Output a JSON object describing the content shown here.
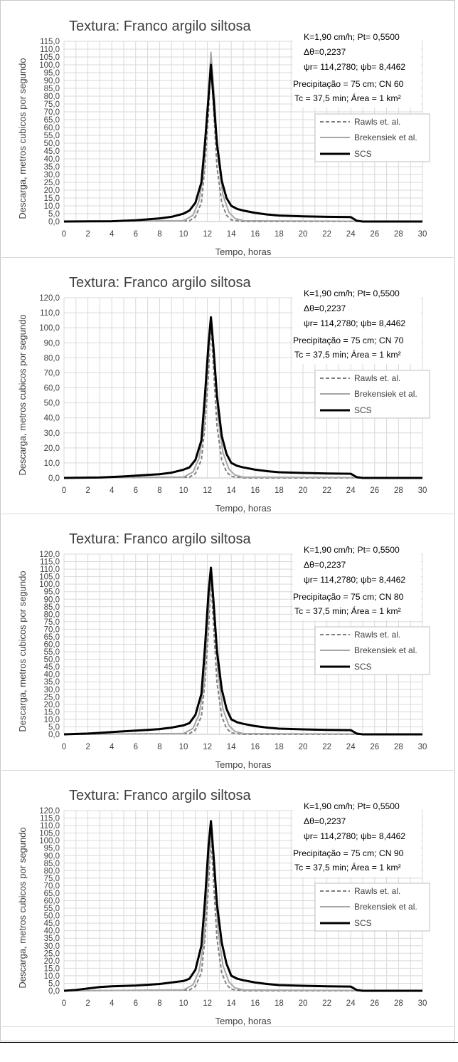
{
  "shared": {
    "title": "Textura: Franco argilo siltosa",
    "xlabel": "Tempo, horas",
    "ylabel": "Descarga, metros cubicos por segundo",
    "ann1": "K=1,90 cm/h; Pt= 0,5500",
    "ann2": "Δθ=0,2237",
    "ann3": "ψr= 114,2780;  ψb= 8,4462",
    "ann5": "Tc = 37,5 min; Área = 1 km²",
    "legend": [
      "Rawls et. al.",
      "Brekensiek et al.",
      "SCS"
    ],
    "colors": {
      "rawls": "#7f7f7f",
      "brakensiek": "#a6a6a6",
      "scs": "#000000",
      "grid": "#d9d9d9"
    }
  },
  "chart_data": [
    {
      "type": "line",
      "title": "Textura: Franco argilo siltosa",
      "annotation_cn": "Precipitação = 75 cm; CN 60",
      "xlabel": "Tempo, horas",
      "ylabel": "Descarga, metros cubicos por segundo",
      "xlim": [
        0,
        30
      ],
      "ylim": [
        0,
        115
      ],
      "ystep": 5,
      "x_ticks": [
        0,
        2,
        4,
        6,
        8,
        10,
        12,
        14,
        16,
        18,
        20,
        22,
        24,
        26,
        28,
        30
      ],
      "y_ticks": [
        "0,0",
        "5,0",
        "10,0",
        "15,0",
        "20,0",
        "25,0",
        "30,0",
        "35,0",
        "40,0",
        "45,0",
        "50,0",
        "55,0",
        "60,0",
        "65,0",
        "70,0",
        "75,0",
        "80,0",
        "85,0",
        "90,0",
        "95,0",
        "100,0",
        "105,0",
        "110,0",
        "115,0"
      ],
      "series": [
        {
          "name": "Rawls et. al.",
          "x": [
            0,
            10.5,
            11,
            11.5,
            11.8,
            12.1,
            12.3,
            12.5,
            12.8,
            13.2,
            13.6,
            14,
            15,
            30
          ],
          "y": [
            0,
            0.5,
            3,
            12,
            35,
            70,
            104,
            75,
            35,
            12,
            4,
            1,
            0,
            0
          ]
        },
        {
          "name": "Brekensiek et al.",
          "x": [
            0,
            10,
            10.8,
            11.3,
            11.7,
            12,
            12.3,
            12.6,
            12.9,
            13.3,
            13.8,
            14.3,
            15,
            30
          ],
          "y": [
            0,
            0.5,
            4,
            13,
            32,
            70,
            108,
            78,
            40,
            17,
            6,
            2,
            0.5,
            0
          ]
        },
        {
          "name": "SCS",
          "x": [
            0,
            4,
            6,
            8,
            9,
            10,
            10.5,
            11,
            11.5,
            11.8,
            12.1,
            12.3,
            12.5,
            12.8,
            13.2,
            13.6,
            14,
            14.5,
            15,
            16,
            17,
            18,
            20,
            22,
            24,
            24.5,
            25,
            30
          ],
          "y": [
            0,
            0.2,
            0.8,
            2,
            3,
            5,
            7,
            12,
            25,
            50,
            80,
            100,
            80,
            50,
            26,
            15,
            10,
            8,
            7,
            5.5,
            4.5,
            3.8,
            3.3,
            3,
            2.8,
            0.5,
            0,
            0
          ]
        }
      ]
    },
    {
      "type": "line",
      "title": "Textura: Franco argilo siltosa",
      "annotation_cn": "Precipitação = 75 cm; CN 70",
      "xlabel": "Tempo, horas",
      "ylabel": "Descarga, metros cubicos por segundo",
      "xlim": [
        0,
        30
      ],
      "ylim": [
        0,
        120
      ],
      "ystep": 10,
      "x_ticks": [
        0,
        2,
        4,
        6,
        8,
        10,
        12,
        14,
        16,
        18,
        20,
        22,
        24,
        26,
        28,
        30
      ],
      "y_ticks": [
        "0,0",
        "10,0",
        "20,0",
        "30,0",
        "40,0",
        "50,0",
        "60,0",
        "70,0",
        "80,0",
        "90,0",
        "100,0",
        "110,0",
        "120,0"
      ],
      "series": [
        {
          "name": "Rawls et. al.",
          "x": [
            0,
            10.5,
            11,
            11.5,
            11.8,
            12.1,
            12.3,
            12.5,
            12.8,
            13.2,
            13.6,
            14,
            15,
            30
          ],
          "y": [
            0,
            0.5,
            3,
            12,
            35,
            70,
            104,
            75,
            35,
            12,
            4,
            1,
            0,
            0
          ]
        },
        {
          "name": "Brekensiek et al.",
          "x": [
            0,
            10,
            10.8,
            11.3,
            11.7,
            12,
            12.3,
            12.6,
            12.9,
            13.3,
            13.8,
            14.3,
            15,
            30
          ],
          "y": [
            0,
            0.5,
            4,
            13,
            32,
            70,
            106,
            78,
            40,
            17,
            6,
            2,
            0.5,
            0
          ]
        },
        {
          "name": "SCS",
          "x": [
            0,
            3,
            5,
            7,
            8,
            9,
            10,
            10.5,
            11,
            11.5,
            11.8,
            12.1,
            12.3,
            12.5,
            12.8,
            13.2,
            13.6,
            14,
            14.5,
            15,
            16,
            17,
            18,
            20,
            22,
            24,
            24.5,
            25,
            30
          ],
          "y": [
            0,
            0.3,
            1,
            2,
            2.5,
            3.5,
            5.5,
            7,
            12,
            25,
            55,
            90,
            107,
            88,
            55,
            28,
            16,
            10,
            8,
            7,
            5.5,
            4.5,
            3.8,
            3.3,
            3,
            2.8,
            0.5,
            0,
            0
          ]
        }
      ]
    },
    {
      "type": "line",
      "title": "Textura: Franco argilo siltosa",
      "annotation_cn": "Precipitação = 75 cm; CN 80",
      "xlabel": "Tempo, horas",
      "ylabel": "Descarga, metros cubicos por segundo",
      "xlim": [
        0,
        30
      ],
      "ylim": [
        0,
        120
      ],
      "ystep": 5,
      "x_ticks": [
        0,
        2,
        4,
        6,
        8,
        10,
        12,
        14,
        16,
        18,
        20,
        22,
        24,
        26,
        28,
        30
      ],
      "y_ticks": [
        "0,0",
        "5,0",
        "10,0",
        "15,0",
        "20,0",
        "25,0",
        "30,0",
        "35,0",
        "40,0",
        "45,0",
        "50,0",
        "55,0",
        "60,0",
        "65,0",
        "70,0",
        "75,0",
        "80,0",
        "85,0",
        "90,0",
        "95,0",
        "100,0",
        "105,0",
        "110,0",
        "115,0",
        "120,0"
      ],
      "series": [
        {
          "name": "Rawls et. al.",
          "x": [
            0,
            10.5,
            11,
            11.5,
            11.8,
            12.1,
            12.3,
            12.5,
            12.8,
            13.2,
            13.6,
            14,
            15,
            30
          ],
          "y": [
            0,
            0.5,
            3,
            12,
            35,
            70,
            104,
            75,
            35,
            12,
            4,
            1,
            0,
            0
          ]
        },
        {
          "name": "Brekensiek et al.",
          "x": [
            0,
            10,
            10.8,
            11.3,
            11.7,
            12,
            12.3,
            12.6,
            12.9,
            13.3,
            13.8,
            14.3,
            15,
            30
          ],
          "y": [
            0,
            0.5,
            4,
            13,
            32,
            70,
            106,
            78,
            40,
            17,
            6,
            2,
            0.5,
            0
          ]
        },
        {
          "name": "SCS",
          "x": [
            0,
            2,
            3,
            4,
            6,
            7,
            8,
            9,
            10,
            10.5,
            11,
            11.5,
            11.8,
            12.1,
            12.3,
            12.5,
            12.8,
            13.2,
            13.6,
            14,
            14.5,
            15,
            16,
            17,
            18,
            20,
            22,
            24,
            24.5,
            25,
            30
          ],
          "y": [
            0,
            0.5,
            1,
            1.5,
            2.5,
            3,
            3.5,
            4.5,
            6,
            7.5,
            13,
            27,
            58,
            95,
            111,
            90,
            56,
            30,
            17,
            10,
            8,
            7,
            5.5,
            4.5,
            3.8,
            3.3,
            3,
            2.8,
            0.5,
            0,
            0
          ]
        }
      ]
    },
    {
      "type": "line",
      "title": "Textura: Franco argilo siltosa",
      "annotation_cn": "Precipitação = 75 cm; CN 90",
      "xlabel": "Tempo, horas",
      "ylabel": "Descarga, metros cubicos por segundo",
      "xlim": [
        0,
        30
      ],
      "ylim": [
        0,
        120
      ],
      "ystep": 5,
      "x_ticks": [
        0,
        2,
        4,
        6,
        8,
        10,
        12,
        14,
        16,
        18,
        20,
        22,
        24,
        26,
        28,
        30
      ],
      "y_ticks": [
        "0,0",
        "5,0",
        "10,0",
        "15,0",
        "20,0",
        "25,0",
        "30,0",
        "35,0",
        "40,0",
        "45,0",
        "50,0",
        "55,0",
        "60,0",
        "65,0",
        "70,0",
        "75,0",
        "80,0",
        "85,0",
        "90,0",
        "95,0",
        "100,0",
        "105,0",
        "110,0",
        "115,0",
        "120,0"
      ],
      "series": [
        {
          "name": "Rawls et. al.",
          "x": [
            0,
            10.5,
            11,
            11.5,
            11.8,
            12.1,
            12.3,
            12.5,
            12.8,
            13.2,
            13.6,
            14,
            15,
            30
          ],
          "y": [
            0,
            0.5,
            3,
            12,
            35,
            70,
            104,
            75,
            35,
            12,
            4,
            1,
            0,
            0
          ]
        },
        {
          "name": "Brekensiek et al.",
          "x": [
            0,
            10,
            10.8,
            11.3,
            11.7,
            12,
            12.3,
            12.6,
            12.9,
            13.3,
            13.8,
            14.3,
            15,
            30
          ],
          "y": [
            0,
            0.5,
            4,
            13,
            32,
            70,
            106,
            78,
            40,
            17,
            6,
            2,
            0.5,
            0
          ]
        },
        {
          "name": "SCS",
          "x": [
            0,
            1,
            2,
            3,
            4,
            6,
            7,
            8,
            9,
            10,
            10.5,
            11,
            11.5,
            11.8,
            12.1,
            12.3,
            12.5,
            12.8,
            13.2,
            13.6,
            14,
            14.5,
            15,
            16,
            17,
            18,
            20,
            22,
            24,
            24.5,
            25,
            30
          ],
          "y": [
            0,
            0.5,
            1.5,
            2.5,
            3,
            3.5,
            4,
            4.5,
            5.5,
            6.5,
            8,
            14,
            30,
            60,
            97,
            113,
            92,
            58,
            32,
            18,
            10,
            8,
            7,
            5.5,
            4.5,
            3.8,
            3.3,
            3,
            2.8,
            0.5,
            0,
            0
          ]
        }
      ]
    }
  ]
}
